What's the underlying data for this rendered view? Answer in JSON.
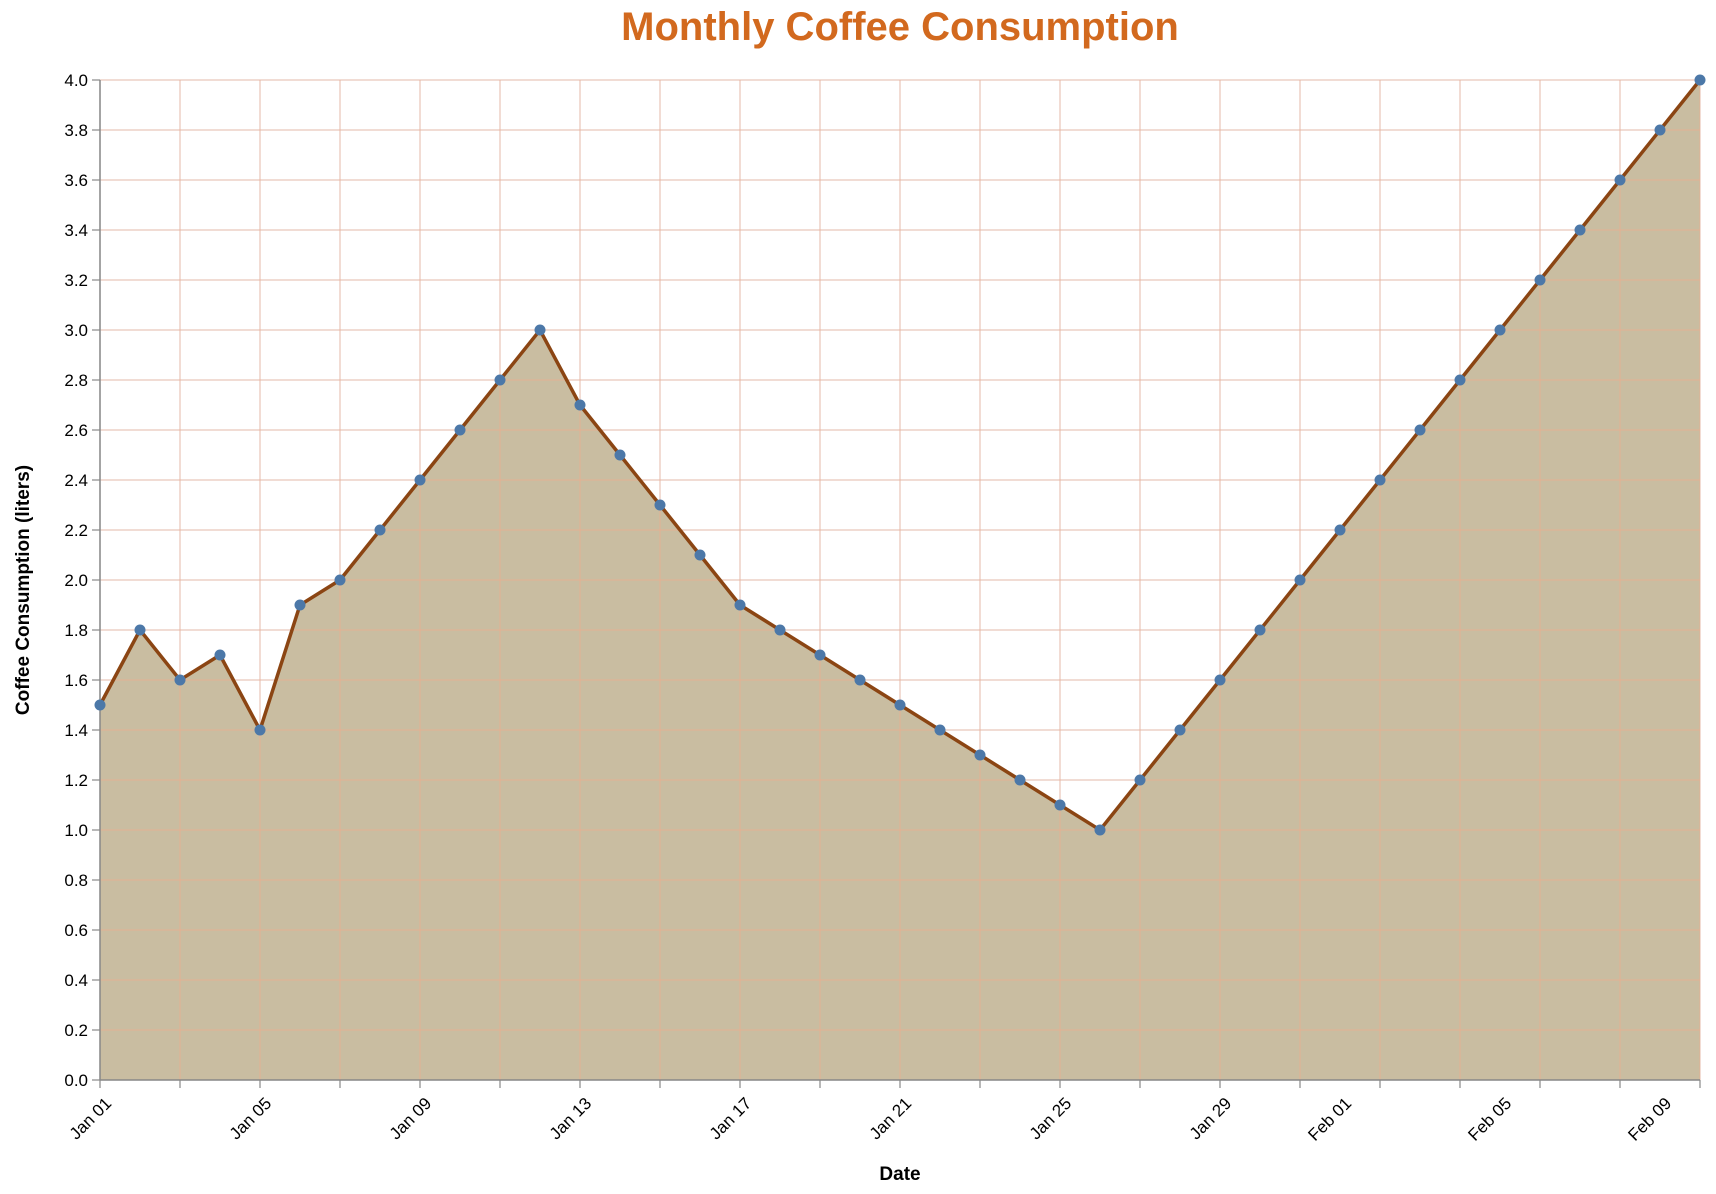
{
  "colors": {
    "title": "#D2691E",
    "area_fill": "#C9BDA1",
    "line": "#8B4513",
    "point": "#4C78A8",
    "grid": "#dddddd",
    "grid_over_area": "#F5A88A",
    "axis": "#888888"
  },
  "chart_data": {
    "type": "area",
    "title": "Monthly Coffee Consumption",
    "xlabel": "Date",
    "ylabel": "Coffee Consumption (liters)",
    "ylim": [
      0,
      4.0
    ],
    "y_ticks": [
      0.0,
      0.2,
      0.4,
      0.6,
      0.8,
      1.0,
      1.2,
      1.4,
      1.6,
      1.8,
      2.0,
      2.2,
      2.4,
      2.6,
      2.8,
      3.0,
      3.2,
      3.4,
      3.6,
      3.8,
      4.0
    ],
    "x_tick_labels": [
      "Jan 01",
      "Jan 05",
      "Jan 09",
      "Jan 13",
      "Jan 17",
      "Jan 21",
      "Jan 25",
      "Jan 29",
      "Feb 01",
      "Feb 05",
      "Feb 09"
    ],
    "grid": true,
    "points": true,
    "x": [
      "2023-01-01",
      "2023-01-02",
      "2023-01-03",
      "2023-01-04",
      "2023-01-05",
      "2023-01-06",
      "2023-01-07",
      "2023-01-08",
      "2023-01-09",
      "2023-01-10",
      "2023-01-11",
      "2023-01-12",
      "2023-01-13",
      "2023-01-14",
      "2023-01-15",
      "2023-01-16",
      "2023-01-17",
      "2023-01-18",
      "2023-01-19",
      "2023-01-20",
      "2023-01-21",
      "2023-01-22",
      "2023-01-23",
      "2023-01-24",
      "2023-01-25",
      "2023-01-26",
      "2023-01-27",
      "2023-01-28",
      "2023-01-29",
      "2023-01-30",
      "2023-01-31",
      "2023-02-01",
      "2023-02-02",
      "2023-02-03",
      "2023-02-04",
      "2023-02-05",
      "2023-02-06",
      "2023-02-07",
      "2023-02-08",
      "2023-02-09",
      "2023-02-10"
    ],
    "values": [
      1.5,
      1.8,
      1.6,
      1.7,
      1.4,
      1.9,
      2.0,
      2.2,
      2.4,
      2.6,
      2.8,
      3.0,
      2.7,
      2.5,
      2.3,
      2.1,
      1.9,
      1.8,
      1.7,
      1.6,
      1.5,
      1.4,
      1.3,
      1.2,
      1.1,
      1.0,
      1.2,
      1.4,
      1.6,
      1.8,
      2.0,
      2.2,
      2.4,
      2.6,
      2.8,
      3.0,
      3.2,
      3.4,
      3.6,
      3.8,
      4.0
    ]
  }
}
